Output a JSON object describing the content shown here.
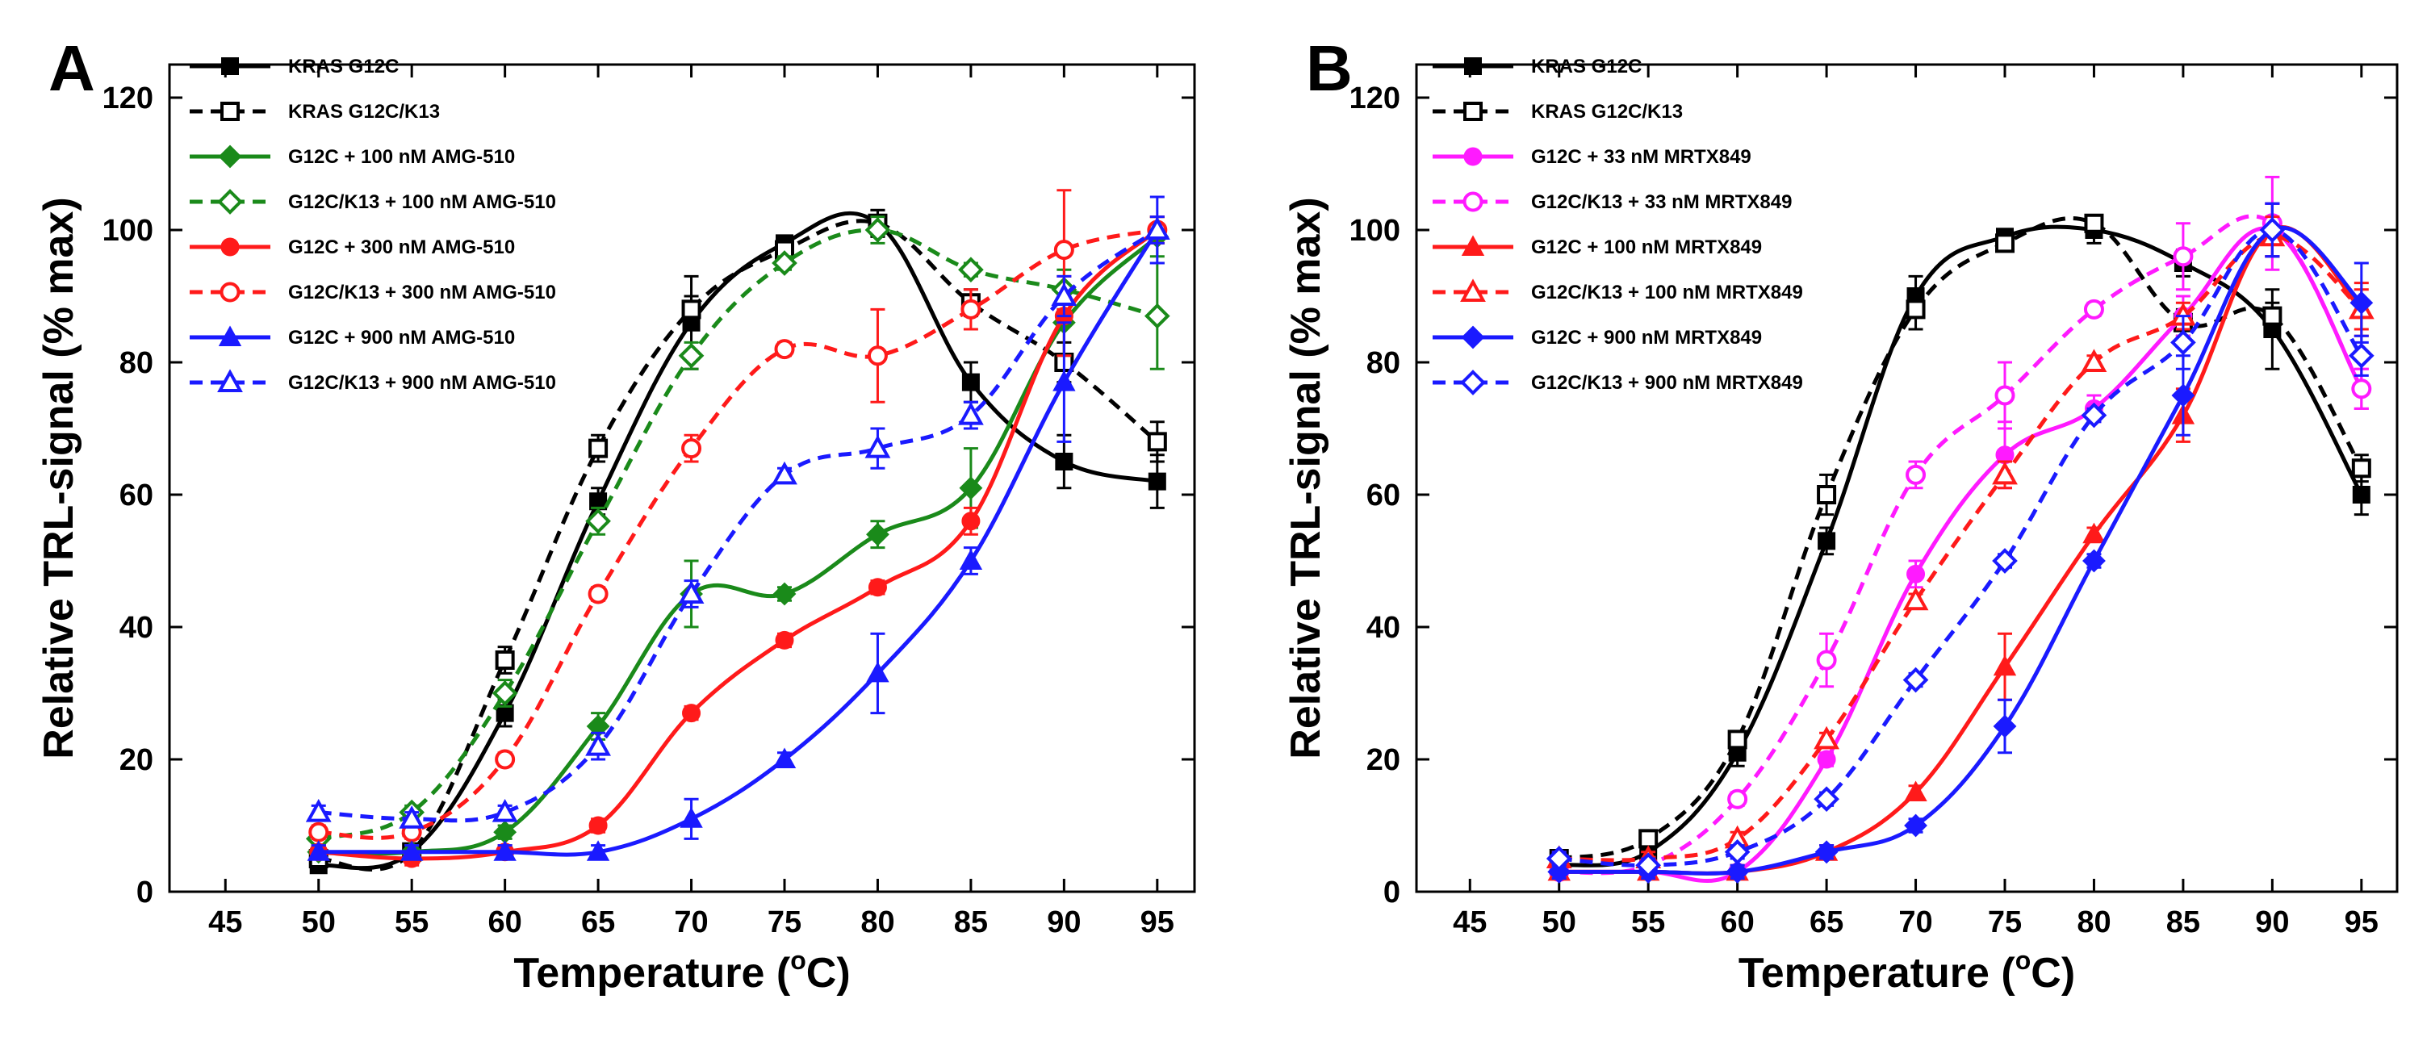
{
  "figure": {
    "y_axis_label": "Relative TRL-signal (% max)",
    "x_axis_label_parts": {
      "main": "Temperature (",
      "super": "o",
      "unit": "C)"
    }
  },
  "chart_data": [
    {
      "panel": "A",
      "type": "line",
      "xlabel": "Temperature (°C)",
      "ylabel": "Relative TRL-signal (% max)",
      "xlim": [
        42,
        97
      ],
      "ylim": [
        0,
        125
      ],
      "xticks": [
        45,
        50,
        55,
        60,
        65,
        70,
        75,
        80,
        85,
        90,
        95
      ],
      "yticks": [
        0,
        20,
        40,
        60,
        80,
        100,
        120
      ],
      "x": [
        50,
        55,
        60,
        65,
        70,
        75,
        80,
        85,
        90,
        95
      ],
      "series": [
        {
          "name": "KRAS G12C",
          "color": "#000000",
          "dashed": false,
          "marker": "square",
          "filled": true,
          "values": [
            4,
            6,
            27,
            59,
            86,
            98,
            101,
            77,
            65,
            62
          ],
          "errors": [
            1,
            1,
            2,
            2,
            7,
            1,
            2,
            3,
            4,
            4
          ]
        },
        {
          "name": "KRAS G12C/K13",
          "color": "#000000",
          "dashed": true,
          "marker": "square",
          "filled": false,
          "values": [
            5,
            6,
            35,
            67,
            88,
            97,
            101,
            89,
            80,
            68
          ],
          "errors": [
            1,
            1,
            2,
            2,
            2,
            1,
            2,
            2,
            3,
            3
          ]
        },
        {
          "name": "G12C + 100 nM AMG-510",
          "color": "#1a8a1a",
          "dashed": false,
          "marker": "diamond",
          "filled": true,
          "values": [
            6,
            6,
            9,
            25,
            45,
            45,
            54,
            61,
            86,
            99
          ],
          "errors": [
            1,
            1,
            1,
            2,
            5,
            1,
            2,
            6,
            5,
            3
          ]
        },
        {
          "name": "G12C/K13 + 100 nM AMG-510",
          "color": "#1a8a1a",
          "dashed": true,
          "marker": "diamond",
          "filled": false,
          "values": [
            8,
            12,
            30,
            56,
            81,
            95,
            100,
            94,
            91,
            87
          ],
          "errors": [
            1,
            1,
            2,
            2,
            2,
            1,
            2,
            1,
            3,
            8
          ]
        },
        {
          "name": "G12C + 300 nM AMG-510",
          "color": "#ff1a1a",
          "dashed": false,
          "marker": "circle",
          "filled": true,
          "values": [
            6,
            5,
            6,
            10,
            27,
            38,
            46,
            56,
            87,
            100
          ],
          "errors": [
            1,
            1,
            1,
            1,
            1,
            1,
            1,
            2,
            6,
            2
          ]
        },
        {
          "name": "G12C/K13 + 300 nM AMG-510",
          "color": "#ff1a1a",
          "dashed": true,
          "marker": "circle",
          "filled": false,
          "values": [
            9,
            9,
            20,
            45,
            67,
            82,
            81,
            88,
            97,
            100
          ],
          "errors": [
            1,
            1,
            1,
            1,
            2,
            1,
            7,
            3,
            9,
            2
          ]
        },
        {
          "name": "G12C + 900 nM AMG-510",
          "color": "#1a1aff",
          "dashed": false,
          "marker": "triangle",
          "filled": true,
          "values": [
            6,
            6,
            6,
            6,
            11,
            20,
            33,
            50,
            77,
            100
          ],
          "errors": [
            1,
            1,
            1,
            1,
            3,
            1,
            6,
            2,
            9,
            5
          ]
        },
        {
          "name": "G12C/K13 + 900 nM AMG-510",
          "color": "#1a1aff",
          "dashed": true,
          "marker": "triangle",
          "filled": false,
          "values": [
            12,
            11,
            12,
            22,
            45,
            63,
            67,
            72,
            90,
            100
          ],
          "errors": [
            1,
            1,
            1,
            2,
            2,
            1,
            3,
            2,
            3,
            2
          ]
        }
      ]
    },
    {
      "panel": "B",
      "type": "line",
      "xlabel": "Temperature (°C)",
      "ylabel": "Relative TRL-signal (% max)",
      "xlim": [
        42,
        97
      ],
      "ylim": [
        0,
        125
      ],
      "xticks": [
        45,
        50,
        55,
        60,
        65,
        70,
        75,
        80,
        85,
        90,
        95
      ],
      "yticks": [
        0,
        20,
        40,
        60,
        80,
        100,
        120
      ],
      "x": [
        50,
        55,
        60,
        65,
        70,
        75,
        80,
        85,
        90,
        95
      ],
      "series": [
        {
          "name": "KRAS G12C",
          "color": "#000000",
          "dashed": false,
          "marker": "square",
          "filled": true,
          "values": [
            4,
            6,
            21,
            53,
            90,
            99,
            100,
            95,
            85,
            60
          ],
          "errors": [
            1,
            1,
            2,
            2,
            3,
            1,
            2,
            2,
            6,
            3
          ]
        },
        {
          "name": "KRAS G12C/K13",
          "color": "#000000",
          "dashed": true,
          "marker": "square",
          "filled": false,
          "values": [
            5,
            8,
            23,
            60,
            88,
            98,
            101,
            86,
            87,
            64
          ],
          "errors": [
            1,
            1,
            1,
            3,
            3,
            1,
            1,
            2,
            2,
            2
          ]
        },
        {
          "name": "G12C + 33 nM MRTX849",
          "color": "#ff1aff",
          "dashed": false,
          "marker": "circle",
          "filled": true,
          "values": [
            3,
            3,
            3,
            20,
            48,
            66,
            73,
            87,
            100,
            76
          ],
          "errors": [
            1,
            1,
            1,
            1,
            2,
            5,
            2,
            3,
            4,
            3
          ]
        },
        {
          "name": "G12C/K13 + 33 nM MRTX849",
          "color": "#ff1aff",
          "dashed": true,
          "marker": "circle",
          "filled": false,
          "values": [
            3,
            4,
            14,
            35,
            63,
            75,
            88,
            96,
            101,
            76
          ],
          "errors": [
            1,
            1,
            1,
            4,
            2,
            5,
            1,
            5,
            7,
            3
          ]
        },
        {
          "name": "G12C + 100 nM MRTX849",
          "color": "#ff1a1a",
          "dashed": false,
          "marker": "triangle",
          "filled": true,
          "values": [
            3,
            3,
            3,
            6,
            15,
            34,
            54,
            72,
            100,
            88
          ],
          "errors": [
            1,
            1,
            1,
            1,
            1,
            5,
            1,
            4,
            4,
            4
          ]
        },
        {
          "name": "G12C/K13 + 100 nM MRTX849",
          "color": "#ff1a1a",
          "dashed": true,
          "marker": "triangle",
          "filled": false,
          "values": [
            5,
            5,
            8,
            23,
            44,
            63,
            80,
            87,
            99,
            88
          ],
          "errors": [
            1,
            1,
            1,
            1,
            1,
            2,
            1,
            2,
            3,
            3
          ]
        },
        {
          "name": "G12C + 900 nM MRTX849",
          "color": "#1a1aff",
          "dashed": false,
          "marker": "diamond",
          "filled": true,
          "values": [
            3,
            3,
            3,
            6,
            10,
            25,
            50,
            75,
            100,
            89
          ],
          "errors": [
            1,
            1,
            1,
            1,
            1,
            4,
            1,
            6,
            4,
            6
          ]
        },
        {
          "name": "G12C/K13 + 900 nM MRTX849",
          "color": "#1a1aff",
          "dashed": true,
          "marker": "diamond",
          "filled": false,
          "values": [
            5,
            4,
            6,
            14,
            32,
            50,
            72,
            83,
            100,
            81
          ],
          "errors": [
            1,
            1,
            1,
            1,
            1,
            1,
            1,
            4,
            4,
            3
          ]
        }
      ]
    }
  ]
}
